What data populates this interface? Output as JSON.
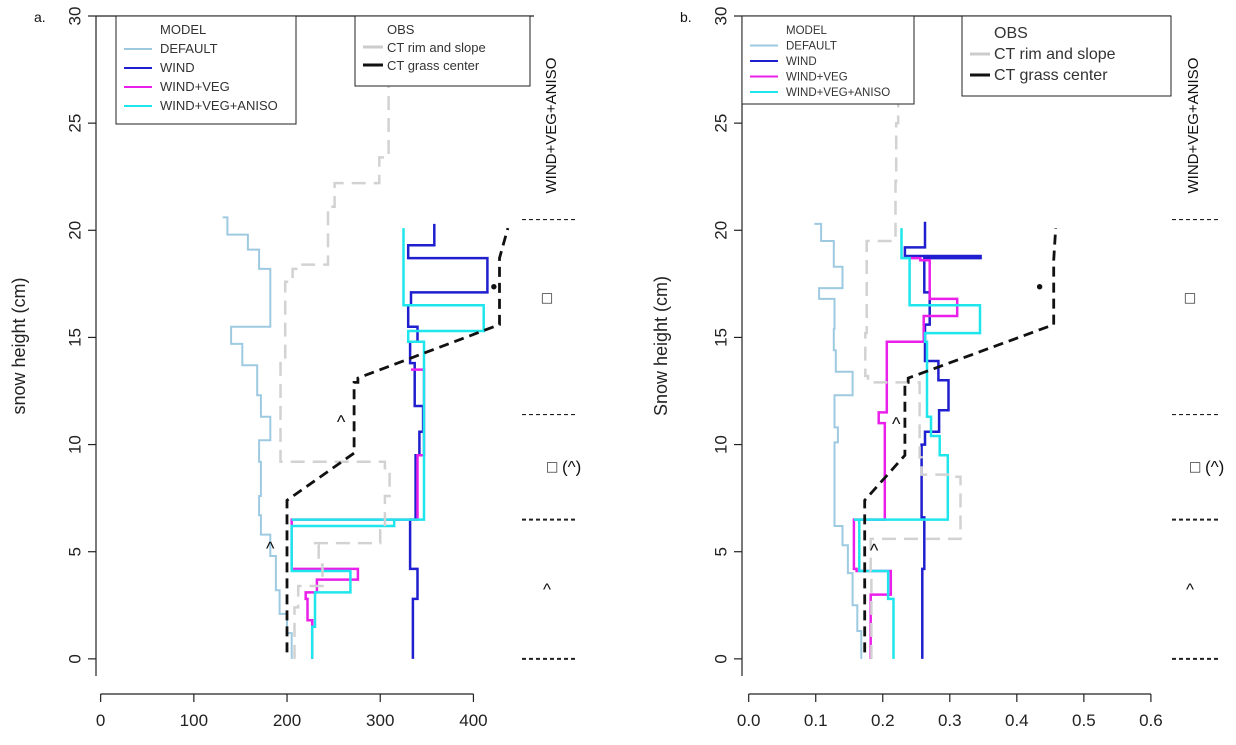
{
  "chart_data": [
    {
      "panel_label": "a.",
      "type": "line",
      "title": "",
      "xlabel": "",
      "ylabel": "snow height (cm)",
      "xlim": [
        -5,
        465
      ],
      "ylim": [
        -0.8,
        30
      ],
      "xticks": [
        0,
        100,
        200,
        300,
        400
      ],
      "xtick_labels": [
        "0",
        "100",
        "200",
        "300",
        "400"
      ],
      "yticks": [
        0,
        5,
        10,
        15,
        20,
        25,
        30
      ],
      "ytick_labels": [
        "0",
        "5",
        "10",
        "15",
        "20",
        "25",
        "30"
      ],
      "legend_model": {
        "title": "MODEL",
        "entries": [
          {
            "label": "DEFAULT",
            "color": "#9ecae1"
          },
          {
            "label": "WIND",
            "color": "#1f1fcf"
          },
          {
            "label": "WIND+VEG",
            "color": "#ea1fea"
          },
          {
            "label": "WIND+VEG+ANISO",
            "color": "#1ee6ec"
          }
        ]
      },
      "legend_obs": {
        "title": "OBS",
        "entries": [
          {
            "label": "CT rim and slope",
            "color": "#cccccc"
          },
          {
            "label": "CT grass center",
            "color": "#111111"
          }
        ]
      },
      "series": [
        {
          "name": "DEFAULT",
          "color": "#9ecae1",
          "width": 2,
          "x": [
            205,
            205,
            200,
            200,
            192,
            192,
            188,
            188,
            182,
            182,
            172,
            172,
            170,
            170,
            172,
            172,
            170,
            170,
            182,
            182,
            172,
            172,
            168,
            168,
            152,
            152,
            140,
            140,
            182,
            182,
            170,
            170,
            158,
            158,
            136,
            136,
            131
          ],
          "y": [
            0,
            1.2,
            1.2,
            2.1,
            2.1,
            3.2,
            3.2,
            4.8,
            4.8,
            5.8,
            5.8,
            6.7,
            6.7,
            7.6,
            7.6,
            9.2,
            9.2,
            10.2,
            10.2,
            11.3,
            11.3,
            12.3,
            12.3,
            13.7,
            13.7,
            14.7,
            14.7,
            15.5,
            15.5,
            18.2,
            18.2,
            19.1,
            19.1,
            19.8,
            19.8,
            20.6,
            20.6
          ]
        },
        {
          "name": "WIND",
          "color": "#1f1fcf",
          "width": 2.5,
          "x": [
            335,
            335,
            340,
            340,
            332,
            332,
            338,
            338,
            342,
            342,
            346,
            346,
            337,
            337,
            332,
            332,
            340,
            340,
            330,
            330,
            333,
            333,
            415,
            415,
            330,
            330,
            358,
            358
          ],
          "y": [
            0,
            2.8,
            2.8,
            4.2,
            4.2,
            6.5,
            6.5,
            9.5,
            9.5,
            10.6,
            10.6,
            11.8,
            11.8,
            13.8,
            13.8,
            14.8,
            14.8,
            15.5,
            15.5,
            16.5,
            16.5,
            17.1,
            17.1,
            18.7,
            18.7,
            19.3,
            19.3,
            20.3
          ]
        },
        {
          "name": "WIND+VEG",
          "color": "#ea1fea",
          "width": 2.5,
          "x": [
            227,
            227,
            222,
            222,
            220,
            220,
            232,
            232,
            276,
            276,
            205,
            205,
            340,
            340,
            347,
            347,
            333
          ],
          "y": [
            0,
            1.8,
            1.8,
            2.8,
            2.8,
            3.1,
            3.1,
            3.7,
            3.7,
            4.2,
            4.2,
            6.5,
            6.5,
            9.5,
            9.5,
            13.5,
            13.5
          ]
        },
        {
          "name": "WIND+VEG+ANISO",
          "color": "#1ee6ec",
          "width": 2.5,
          "x": [
            227,
            227,
            230,
            230,
            268,
            268,
            205,
            205,
            315,
            315,
            205,
            205,
            347,
            347,
            330,
            330,
            411,
            411,
            325,
            325
          ],
          "y": [
            0,
            1.5,
            1.5,
            3.1,
            3.1,
            4.1,
            4.1,
            6.2,
            6.2,
            6.5,
            6.5,
            6.5,
            6.5,
            14.8,
            14.8,
            15.3,
            15.3,
            16.5,
            16.5,
            20.1
          ]
        },
        {
          "name": "CT rim and slope",
          "color": "#d2d2d2",
          "width": 2.5,
          "dash": "14,8",
          "x": [
            208,
            208,
            212,
            212,
            238,
            238,
            234,
            234,
            228,
            228,
            300,
            300,
            305,
            305,
            310,
            310,
            305,
            305,
            228,
            228,
            193,
            193,
            198,
            198,
            206,
            206,
            213,
            213,
            244,
            244,
            251,
            251,
            299,
            299,
            309,
            309
          ],
          "y": [
            0,
            2.4,
            2.4,
            3.4,
            3.4,
            4.4,
            4.4,
            5.3,
            5.3,
            5.4,
            5.4,
            6.0,
            6.0,
            7.6,
            7.6,
            8.9,
            8.9,
            9.2,
            9.2,
            9.2,
            9.2,
            13.9,
            13.9,
            17.6,
            17.6,
            18.2,
            18.2,
            18.4,
            18.4,
            21.1,
            21.1,
            22.2,
            22.2,
            23.4,
            23.4,
            27.5
          ]
        },
        {
          "name": "CT grass center",
          "color": "#111111",
          "width": 2.8,
          "dash": "10,6",
          "x": [
            200,
            200,
            200,
            272,
            272,
            276,
            276,
            428,
            428,
            437
          ],
          "y": [
            0.3,
            6.9,
            7.4,
            9.6,
            12.9,
            12.9,
            13.1,
            15.6,
            18.7,
            20.1
          ]
        }
      ],
      "annotations": [
        {
          "text": "^",
          "x": 258,
          "y": 11.0
        },
        {
          "text": "^",
          "x": 182,
          "y": 5.1
        },
        {
          "text": "•",
          "x": 422,
          "y": 17.3
        }
      ],
      "right_zones": [
        {
          "label": "WIND+VEG+ANISO",
          "y_from": 20.5,
          "y_to": 30
        },
        {
          "label": "□",
          "y_from": 11.4,
          "y_to": 20.5
        },
        {
          "label": "□ (^)",
          "y_from": 6.5,
          "y_to": 11.4
        },
        {
          "label": "^",
          "y_from": 0,
          "y_to": 6.5
        }
      ]
    },
    {
      "panel_label": "b.",
      "type": "line",
      "title": "",
      "xlabel": "",
      "ylabel": "Snow height (cm)",
      "xlim": [
        -0.01,
        0.63
      ],
      "ylim": [
        -0.8,
        30
      ],
      "xticks": [
        0.0,
        0.1,
        0.2,
        0.3,
        0.4,
        0.5,
        0.6
      ],
      "xtick_labels": [
        "0.0",
        "0.1",
        "0.2",
        "0.3",
        "0.4",
        "0.5",
        "0.6"
      ],
      "yticks": [
        0,
        5,
        10,
        15,
        20,
        25,
        30
      ],
      "ytick_labels": [
        "0",
        "5",
        "10",
        "15",
        "20",
        "25",
        "30"
      ],
      "legend_model": {
        "title": "MODEL",
        "entries": [
          {
            "label": "DEFAULT",
            "color": "#9ecae1"
          },
          {
            "label": "WIND",
            "color": "#1f1fcf"
          },
          {
            "label": "WIND+VEG",
            "color": "#ea1fea"
          },
          {
            "label": "WIND+VEG+ANISO",
            "color": "#1ee6ec"
          }
        ]
      },
      "legend_obs": {
        "title": "OBS",
        "entries": [
          {
            "label": "CT rim and slope",
            "color": "#cccccc"
          },
          {
            "label": "CT grass center",
            "color": "#111111"
          }
        ]
      },
      "series": [
        {
          "name": "DEFAULT",
          "color": "#9ecae1",
          "width": 2,
          "x": [
            0.168,
            0.168,
            0.162,
            0.162,
            0.155,
            0.155,
            0.148,
            0.148,
            0.14,
            0.14,
            0.128,
            0.128,
            0.128,
            0.128,
            0.133,
            0.133,
            0.128,
            0.128,
            0.155,
            0.155,
            0.13,
            0.13,
            0.127,
            0.127,
            0.128,
            0.128,
            0.105,
            0.105,
            0.14,
            0.14,
            0.127,
            0.127,
            0.108,
            0.108,
            0.098
          ],
          "y": [
            0,
            1.3,
            1.3,
            2.5,
            2.5,
            4.0,
            4.0,
            5.3,
            5.3,
            6.2,
            6.2,
            9.4,
            9.4,
            10.1,
            10.1,
            10.8,
            10.8,
            12.3,
            12.3,
            13.4,
            13.4,
            14.4,
            14.4,
            15.4,
            15.4,
            16.8,
            16.8,
            17.3,
            17.3,
            18.3,
            18.3,
            19.5,
            19.5,
            20.3,
            20.3
          ]
        },
        {
          "name": "WIND",
          "color": "#1f1fcf",
          "width": 2.5,
          "x": [
            0.259,
            0.259,
            0.262,
            0.262,
            0.258,
            0.258,
            0.263,
            0.263,
            0.284,
            0.284,
            0.298,
            0.298,
            0.283,
            0.283,
            0.263,
            0.263,
            0.27,
            0.27,
            0.262,
            0.262,
            0.346,
            0.346,
            0.233,
            0.233,
            0.263,
            0.263
          ],
          "y": [
            0,
            4.2,
            4.2,
            6.6,
            6.6,
            10.0,
            10.0,
            10.6,
            10.6,
            11.6,
            11.6,
            13.0,
            13.0,
            13.9,
            13.9,
            15.6,
            15.6,
            17.1,
            17.1,
            18.7,
            18.7,
            18.8,
            18.8,
            19.2,
            19.2,
            20.4
          ]
        },
        {
          "name": "WIND+VEG",
          "color": "#ea1fea",
          "width": 2.5,
          "x": [
            0.182,
            0.182,
            0.212,
            0.212,
            0.161,
            0.161,
            0.157,
            0.157,
            0.203,
            0.203,
            0.194,
            0.194,
            0.206,
            0.206,
            0.261,
            0.261,
            0.311,
            0.311,
            0.27,
            0.27,
            0.256,
            0.256,
            0.24
          ],
          "y": [
            0,
            3.0,
            3.0,
            4.1,
            4.1,
            4.2,
            4.2,
            6.5,
            6.5,
            11.0,
            11.0,
            11.5,
            11.5,
            14.8,
            14.8,
            16.0,
            16.0,
            16.8,
            16.8,
            18.6,
            18.6,
            18.7,
            18.7
          ]
        },
        {
          "name": "WIND+VEG+ANISO",
          "color": "#1ee6ec",
          "width": 2.5,
          "x": [
            0.216,
            0.216,
            0.208,
            0.208,
            0.165,
            0.165,
            0.157,
            0.157,
            0.297,
            0.297,
            0.285,
            0.285,
            0.272,
            0.272,
            0.266,
            0.266,
            0.263,
            0.263,
            0.345,
            0.345,
            0.24,
            0.24,
            0.228,
            0.228
          ],
          "y": [
            0,
            2.8,
            2.8,
            4.1,
            4.1,
            6.5,
            6.5,
            6.5,
            6.5,
            9.5,
            9.5,
            10.4,
            10.4,
            11.3,
            11.3,
            14.8,
            14.8,
            15.2,
            15.2,
            16.5,
            16.5,
            18.7,
            18.7,
            20.1
          ]
        },
        {
          "name": "CT rim and slope",
          "color": "#d2d2d2",
          "width": 2.5,
          "dash": "14,8",
          "x": [
            0.183,
            0.183,
            0.182,
            0.182,
            0.25,
            0.25,
            0.316,
            0.316,
            0.3,
            0.3,
            0.258,
            0.258,
            0.255,
            0.255,
            0.178,
            0.178,
            0.174,
            0.174,
            0.176,
            0.176,
            0.219,
            0.219,
            0.22,
            0.22,
            0.223,
            0.223
          ],
          "y": [
            0,
            4.1,
            4.1,
            5.6,
            5.6,
            5.6,
            5.6,
            8.5,
            8.5,
            8.6,
            8.6,
            9.4,
            9.4,
            12.9,
            12.9,
            13.2,
            13.2,
            15.2,
            15.2,
            19.5,
            19.5,
            22.3,
            22.3,
            25.0,
            25.0,
            27.3
          ]
        },
        {
          "name": "CT grass center",
          "color": "#111111",
          "width": 2.8,
          "dash": "10,6",
          "x": [
            0.173,
            0.173,
            0.173,
            0.233,
            0.233,
            0.238,
            0.238,
            0.455,
            0.455,
            0.458
          ],
          "y": [
            0.3,
            6.9,
            7.4,
            9.5,
            12.9,
            12.9,
            13.1,
            15.6,
            18.6,
            20.1
          ]
        }
      ],
      "annotations": [
        {
          "text": "^",
          "x": 0.22,
          "y": 10.9
        },
        {
          "text": "^",
          "x": 0.187,
          "y": 5.0
        },
        {
          "text": "•",
          "x": 0.434,
          "y": 17.3
        }
      ],
      "right_zones": [
        {
          "label": "WIND+VEG+ANISO",
          "y_from": 20.5,
          "y_to": 30
        },
        {
          "label": "□",
          "y_from": 11.4,
          "y_to": 20.5
        },
        {
          "label": "□ (^)",
          "y_from": 6.5,
          "y_to": 11.4
        },
        {
          "label": "^",
          "y_from": 0,
          "y_to": 6.5
        }
      ]
    }
  ]
}
